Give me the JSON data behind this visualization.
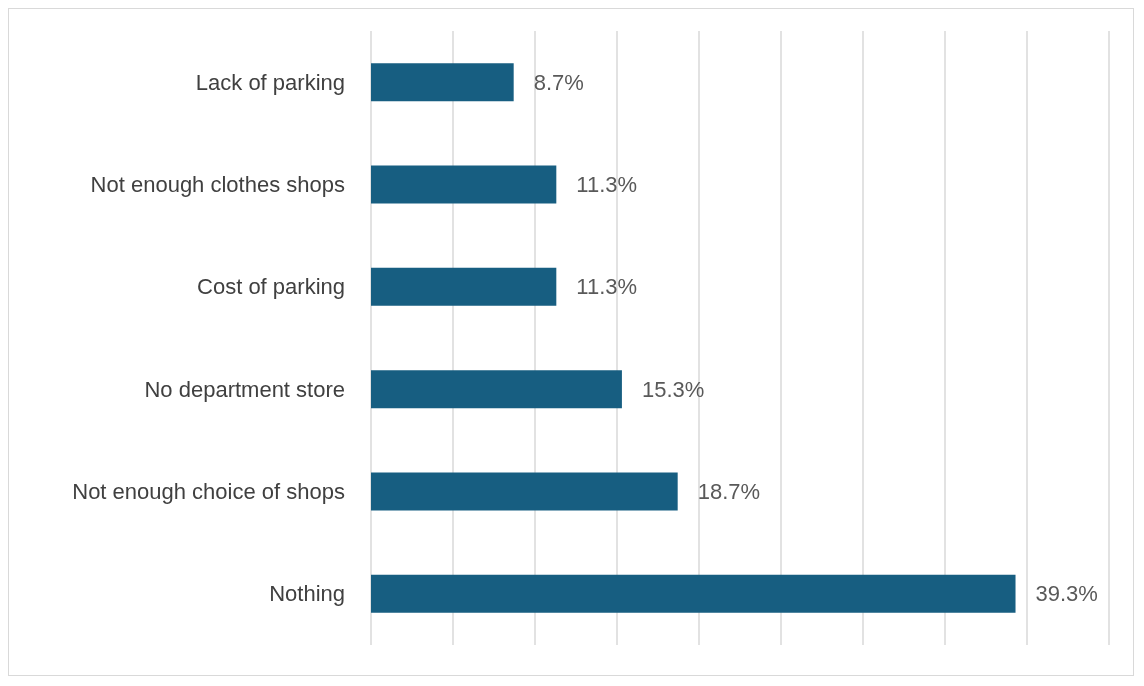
{
  "chart_data": {
    "type": "bar",
    "orientation": "horizontal",
    "categories": [
      "Lack of parking",
      "Not enough clothes shops",
      "Cost of parking",
      "No department store",
      "Not enough choice of shops",
      "Nothing"
    ],
    "values": [
      8.7,
      11.3,
      11.3,
      15.3,
      18.7,
      39.3
    ],
    "value_labels": [
      "8.7%",
      "11.3%",
      "11.3%",
      "15.3%",
      "18.7%",
      "39.3%"
    ],
    "color": "#175e81",
    "xlim": [
      0,
      45
    ],
    "xticks": [
      {
        "value": 0,
        "label": null
      },
      {
        "value": 5,
        "label": null
      },
      {
        "value": 10,
        "label": null
      },
      {
        "value": 15,
        "label": null
      },
      {
        "value": 20,
        "label": null
      },
      {
        "value": 25,
        "label": null
      },
      {
        "value": 30,
        "label": null
      },
      {
        "value": 35,
        "label": null
      },
      {
        "value": 40,
        "label": null
      },
      {
        "value": 45,
        "label": null
      }
    ],
    "grid": "x",
    "tick_labels": "y"
  }
}
